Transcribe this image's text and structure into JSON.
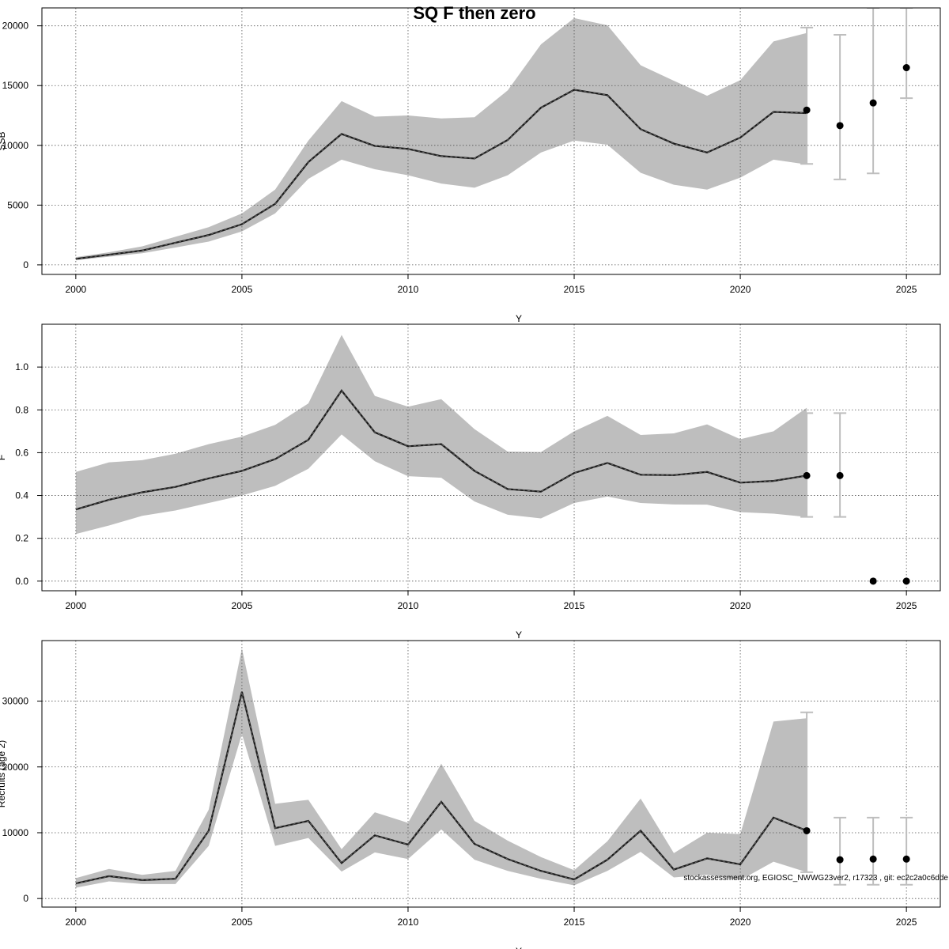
{
  "title": "SQ F then zero",
  "footer": "stockassessment.org, EGIOSC_NWWG23ver2, r17323 , git: ec2c2a0c6dde",
  "colors": {
    "band": "#bebebe",
    "line": "#1a1a1a",
    "errorbar": "#bebebe",
    "point": "#000000",
    "grid": "#555555"
  },
  "chart_data": [
    {
      "type": "line",
      "name": "ssb",
      "xlim": [
        1998.98,
        2026.02
      ],
      "ylim": [
        -800,
        21500
      ],
      "x_ticks": [
        2000,
        2005,
        2010,
        2015,
        2020,
        2025
      ],
      "y_ticks": [
        0,
        5000,
        10000,
        15000,
        20000
      ],
      "x_tick_labels": [
        "2000",
        "2005",
        "2010",
        "2015",
        "2020",
        "2025"
      ],
      "y_tick_labels": [
        "0",
        "5000",
        "10000",
        "15000",
        "20000"
      ],
      "xlabel": "Y",
      "ylabel": "SSB",
      "grid": true,
      "years": [
        2000,
        2001,
        2002,
        2003,
        2004,
        2005,
        2006,
        2007,
        2008,
        2009,
        2010,
        2011,
        2012,
        2013,
        2014,
        2015,
        2016,
        2017,
        2018,
        2019,
        2020,
        2021,
        2022
      ],
      "estimate": [
        500,
        850,
        1200,
        1850,
        2500,
        3400,
        5100,
        8600,
        10950,
        9950,
        9700,
        9100,
        8900,
        10450,
        13150,
        14650,
        14200,
        11350,
        10150,
        9400,
        10650,
        12800,
        12700
      ],
      "low": [
        400,
        680,
        970,
        1450,
        1950,
        2800,
        4300,
        7200,
        8800,
        8000,
        7500,
        6800,
        6450,
        7500,
        9400,
        10400,
        10050,
        7700,
        6700,
        6300,
        7300,
        8800,
        8400
      ],
      "high": [
        650,
        1050,
        1550,
        2350,
        3150,
        4300,
        6300,
        10400,
        13700,
        12400,
        12500,
        12250,
        12350,
        14600,
        18450,
        20650,
        20050,
        16700,
        15400,
        14150,
        15450,
        18700,
        19400
      ],
      "forecast": [
        {
          "x": 2022,
          "y": 12950,
          "low": 8450,
          "high": 19850
        },
        {
          "x": 2023,
          "y": 11650,
          "low": 7150,
          "high": 19250
        },
        {
          "x": 2024,
          "y": 13550,
          "low": 7650,
          "high": 21500
        },
        {
          "x": 2025,
          "y": 16500,
          "low": 13950,
          "high": 21500
        }
      ]
    },
    {
      "type": "line",
      "name": "fbar",
      "xlim": [
        1998.98,
        2026.02
      ],
      "ylim": [
        -0.045,
        1.2
      ],
      "x_ticks": [
        2000,
        2005,
        2010,
        2015,
        2020,
        2025
      ],
      "y_ticks": [
        0,
        0.2,
        0.4,
        0.6,
        0.8,
        1.0
      ],
      "x_tick_labels": [
        "2000",
        "2005",
        "2010",
        "2015",
        "2020",
        "2025"
      ],
      "y_tick_labels": [
        "0.0",
        "0.2",
        "0.4",
        "0.6",
        "0.8",
        "1.0"
      ],
      "xlabel": "Y",
      "ylabel": "F",
      "grid": true,
      "years": [
        2000,
        2001,
        2002,
        2003,
        2004,
        2005,
        2006,
        2007,
        2008,
        2009,
        2010,
        2011,
        2012,
        2013,
        2014,
        2015,
        2016,
        2017,
        2018,
        2019,
        2020,
        2021,
        2022
      ],
      "estimate": [
        0.335,
        0.38,
        0.415,
        0.44,
        0.48,
        0.515,
        0.57,
        0.66,
        0.89,
        0.695,
        0.63,
        0.64,
        0.515,
        0.43,
        0.418,
        0.505,
        0.552,
        0.497,
        0.495,
        0.51,
        0.46,
        0.468,
        0.493
      ],
      "low": [
        0.22,
        0.26,
        0.305,
        0.33,
        0.365,
        0.4,
        0.445,
        0.525,
        0.685,
        0.56,
        0.49,
        0.483,
        0.372,
        0.31,
        0.293,
        0.365,
        0.395,
        0.365,
        0.358,
        0.357,
        0.322,
        0.315,
        0.3
      ],
      "high": [
        0.51,
        0.555,
        0.565,
        0.595,
        0.64,
        0.675,
        0.73,
        0.83,
        1.15,
        0.865,
        0.815,
        0.85,
        0.71,
        0.605,
        0.603,
        0.7,
        0.772,
        0.683,
        0.69,
        0.732,
        0.663,
        0.7,
        0.81
      ],
      "forecast": [
        {
          "x": 2022,
          "y": 0.493,
          "low": 0.3,
          "high": 0.785
        },
        {
          "x": 2023,
          "y": 0.493,
          "low": 0.3,
          "high": 0.785
        },
        {
          "x": 2024,
          "y": 0.0,
          "low": 0.0,
          "high": 0.0
        },
        {
          "x": 2025,
          "y": 0.0,
          "low": 0.0,
          "high": 0.0
        }
      ]
    },
    {
      "type": "line",
      "name": "recruitment",
      "xlim": [
        1998.98,
        2026.02
      ],
      "ylim": [
        -1300,
        39200
      ],
      "x_ticks": [
        2000,
        2005,
        2010,
        2015,
        2020,
        2025
      ],
      "y_ticks": [
        0,
        10000,
        20000,
        30000
      ],
      "x_tick_labels": [
        "2000",
        "2005",
        "2010",
        "2015",
        "2020",
        "2025"
      ],
      "y_tick_labels": [
        "0",
        "10000",
        "20000",
        "30000"
      ],
      "xlabel": "Y",
      "ylabel": "Recruits (age 2)",
      "grid": true,
      "years": [
        2000,
        2001,
        2002,
        2003,
        2004,
        2005,
        2006,
        2007,
        2008,
        2009,
        2010,
        2011,
        2012,
        2013,
        2014,
        2015,
        2016,
        2017,
        2018,
        2019,
        2020,
        2021,
        2022
      ],
      "estimate": [
        2300,
        3400,
        2800,
        3000,
        10300,
        31400,
        10700,
        11800,
        5400,
        9600,
        8200,
        14700,
        8300,
        6000,
        4200,
        2900,
        5900,
        10300,
        4400,
        6100,
        5200,
        12300,
        10300
      ],
      "low": [
        1650,
        2600,
        2200,
        2200,
        8000,
        25000,
        8000,
        9200,
        4100,
        7000,
        6000,
        10500,
        5900,
        4200,
        3000,
        2000,
        4200,
        7100,
        3200,
        3600,
        2800,
        5600,
        4000
      ],
      "high": [
        3100,
        4500,
        3600,
        4200,
        13500,
        38000,
        14400,
        15000,
        7500,
        13100,
        11500,
        20500,
        11800,
        8800,
        6300,
        4300,
        8700,
        15200,
        6900,
        10000,
        9800,
        26900,
        27400
      ],
      "forecast": [
        {
          "x": 2022,
          "y": 10300,
          "low": 4000,
          "high": 28300
        },
        {
          "x": 2023,
          "y": 5900,
          "low": 2100,
          "high": 12300
        },
        {
          "x": 2024,
          "y": 6000,
          "low": 2100,
          "high": 12300
        },
        {
          "x": 2025,
          "y": 6000,
          "low": 2100,
          "high": 12300
        }
      ]
    }
  ]
}
